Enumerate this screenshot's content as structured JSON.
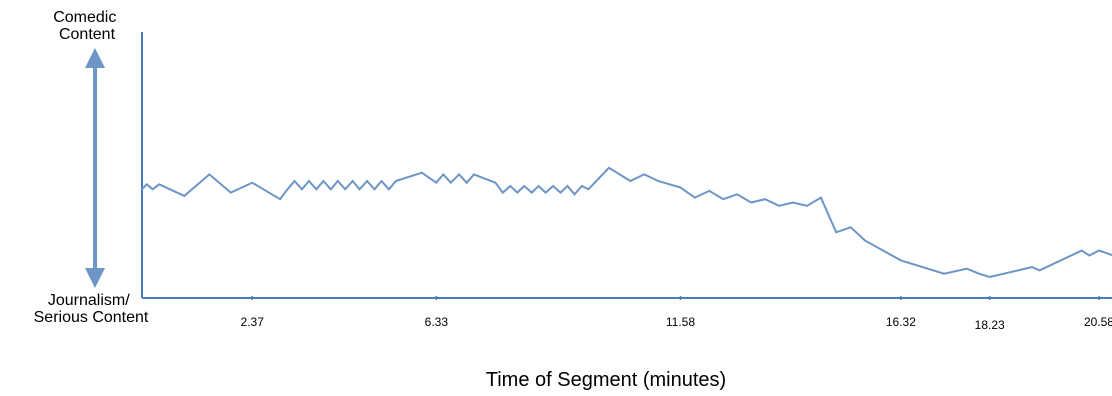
{
  "chart_data": {
    "type": "line",
    "title": "",
    "xlabel": "Time of Segment (minutes)",
    "ylabel_top": [
      "Comedic",
      "Content"
    ],
    "ylabel_bottom": [
      "Journalism/",
      "Serious Content"
    ],
    "x_ticks": [
      "2.37",
      "6.33",
      "11.58",
      "16.32",
      "18.23",
      "20.58"
    ],
    "grid": false,
    "legend": "none",
    "line_color": "#6d95c6",
    "axis_color": "#4a7bbd",
    "arrow_color": "#6d95c6",
    "series": [
      {
        "x": [
          0,
          0.1,
          0.23,
          0.37,
          0.91,
          1.45,
          1.91,
          2.37,
          2.97,
          3.13,
          3.28,
          3.44,
          3.59,
          3.75,
          3.9,
          4.06,
          4.21,
          4.37,
          4.53,
          4.68,
          4.84,
          5.0,
          5.15,
          5.31,
          5.46,
          6.02,
          6.33,
          6.48,
          6.64,
          6.82,
          6.98,
          7.14,
          7.6,
          7.76,
          7.92,
          8.07,
          8.22,
          8.38,
          8.53,
          8.68,
          8.84,
          9.0,
          9.15,
          9.3,
          9.46,
          9.6,
          10.04,
          10.5,
          10.8,
          11.1,
          11.58,
          11.89,
          12.2,
          12.5,
          12.8,
          13.1,
          13.4,
          13.7,
          14.0,
          14.3,
          14.6,
          14.93,
          15.24,
          15.55,
          16.32,
          17.25,
          17.74,
          18.0,
          18.23,
          19.14,
          19.3,
          20.21,
          20.37,
          20.58,
          20.89
        ],
        "y": [
          0.53,
          0.56,
          0.53,
          0.56,
          0.49,
          0.62,
          0.51,
          0.57,
          0.47,
          0.53,
          0.58,
          0.53,
          0.58,
          0.53,
          0.58,
          0.53,
          0.58,
          0.53,
          0.58,
          0.53,
          0.58,
          0.53,
          0.58,
          0.53,
          0.58,
          0.63,
          0.57,
          0.62,
          0.57,
          0.62,
          0.57,
          0.62,
          0.57,
          0.51,
          0.55,
          0.51,
          0.55,
          0.51,
          0.55,
          0.51,
          0.55,
          0.51,
          0.55,
          0.5,
          0.55,
          0.53,
          0.66,
          0.58,
          0.62,
          0.58,
          0.54,
          0.48,
          0.52,
          0.47,
          0.5,
          0.45,
          0.47,
          0.43,
          0.45,
          0.43,
          0.48,
          0.27,
          0.3,
          0.22,
          0.1,
          0.02,
          0.05,
          0.02,
          0.0,
          0.06,
          0.04,
          0.16,
          0.13,
          0.16,
          0.13
        ]
      }
    ]
  }
}
